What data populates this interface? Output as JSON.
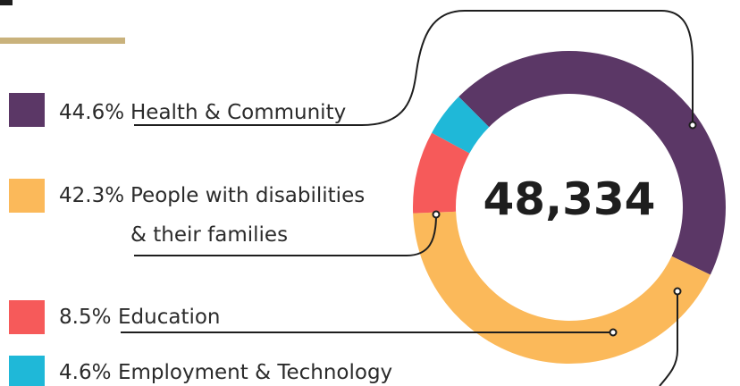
{
  "colors": {
    "accent_bar": "#c9b27c",
    "leader_line": "#1e1e1e",
    "text": "#2b2b2b"
  },
  "chart_data": {
    "type": "pie",
    "style": "donut",
    "center_value": "48,334",
    "slices": [
      {
        "label": "Health & Community",
        "percent_text": "44.6%",
        "value": 44.6,
        "color": "#5b3766"
      },
      {
        "label": "People with disabilities",
        "label_line2": "& their families",
        "percent_text": "42.3%",
        "value": 42.3,
        "color": "#fbb95a"
      },
      {
        "label": "Education",
        "percent_text": "8.5%",
        "value": 8.5,
        "color": "#f65a5a"
      },
      {
        "label": "Employment & Technology",
        "percent_text": "4.6%",
        "value": 4.6,
        "color": "#1fb8d8"
      }
    ],
    "legend_placement": "left"
  }
}
